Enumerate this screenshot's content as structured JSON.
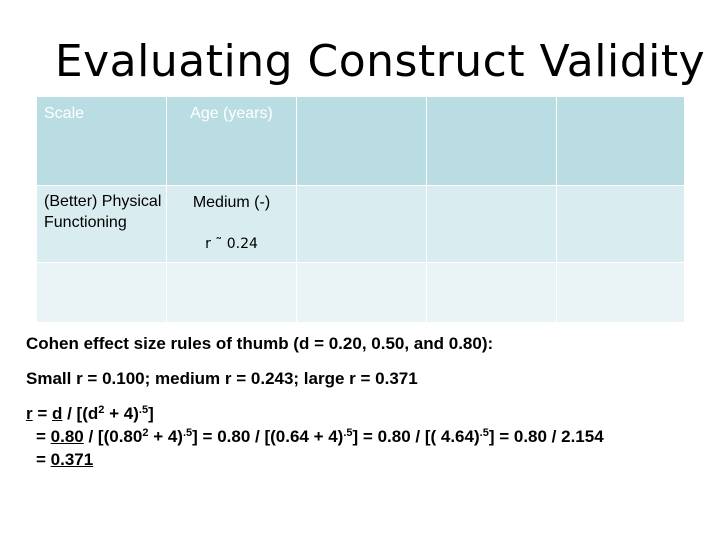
{
  "slide": {
    "title": "Evaluating Construct Validity"
  },
  "table": {
    "header": {
      "scale": "Scale",
      "age": "Age (years)"
    },
    "row1": {
      "scale": "(Better) Physical Functioning",
      "age_effect": "Medium (-)",
      "age_r": "r ˜ 0.24"
    }
  },
  "notes": {
    "cohen": "Cohen effect size rules of thumb (d = 0.20, 0.50, and 0.80):",
    "thresholds": "Small r = 0.100; medium r = 0.243; large r = 0.371",
    "f_r": "r",
    "f_eq": " = ",
    "f_d": "d",
    "f_a": " / [(d",
    "f_b": " + 4)",
    "f_c": "]",
    "f_exp2": "2",
    "f_exp5": ".5",
    "l2_eq": "= ",
    "l2_num": "0.80",
    "l2_a": " / [(0.80",
    "l2_b": " + 4)",
    "l2_c": "] = 0.80 / [(0.64 + 4)",
    "l2_d": "] = 0.80 / [( 4.64)",
    "l2_e": "] = 0.80 / 2.154",
    "l3_eq": "= ",
    "l3_result": "0.371"
  }
}
